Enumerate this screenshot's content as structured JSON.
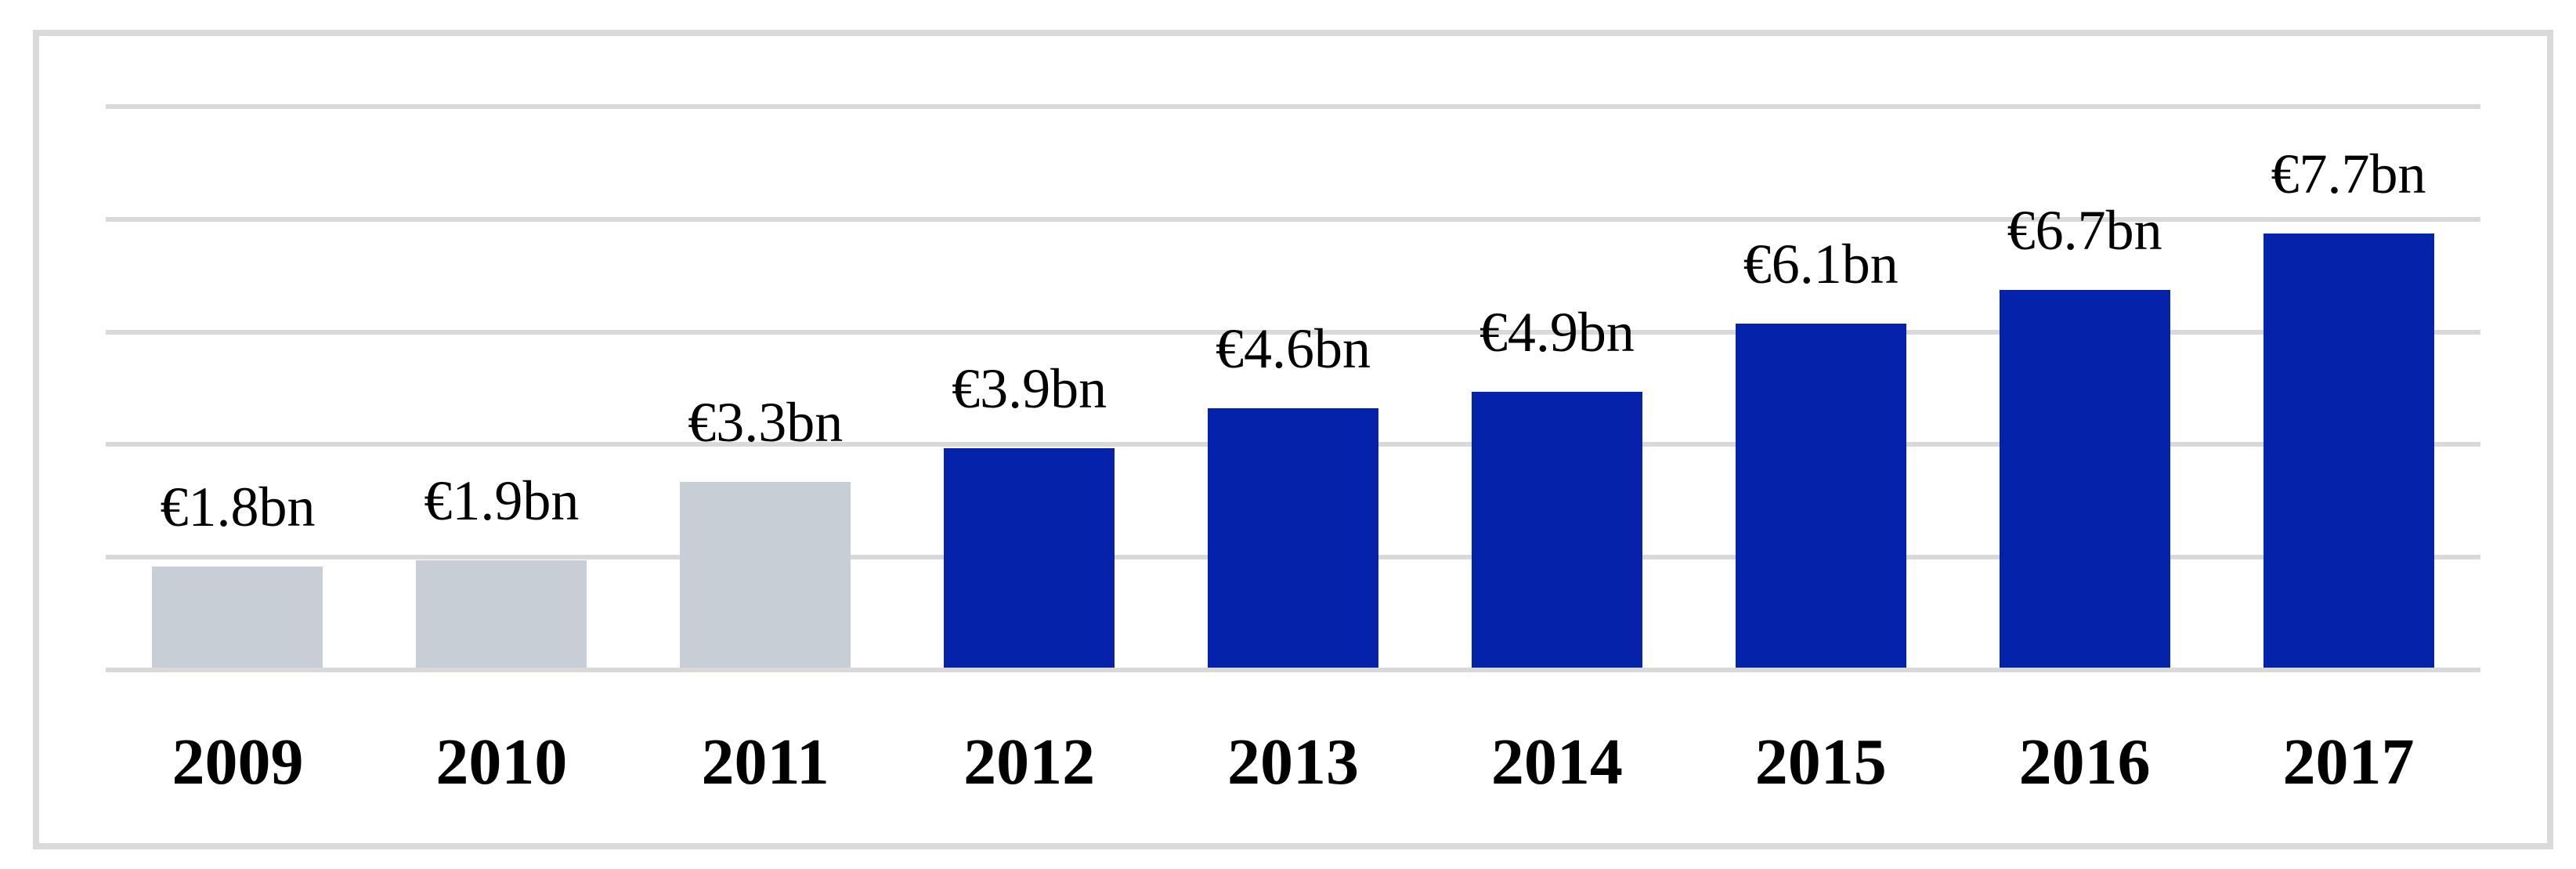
{
  "chart_data": {
    "type": "bar",
    "title": "",
    "xlabel": "",
    "ylabel": "",
    "unit": "€bn",
    "categories": [
      "2009",
      "2010",
      "2011",
      "2012",
      "2013",
      "2014",
      "2015",
      "2016",
      "2017"
    ],
    "values": [
      1.8,
      1.9,
      3.3,
      3.9,
      4.6,
      4.9,
      6.1,
      6.7,
      7.7
    ],
    "value_labels": [
      "€1.8bn",
      "€1.9bn",
      "€3.3bn",
      "€3.9bn",
      "€4.6bn",
      "€4.9bn",
      "€6.1bn",
      "€6.7bn",
      "€7.7bn"
    ],
    "ylim": [
      0,
      10
    ],
    "y_gridlines": [
      0,
      2,
      4,
      6,
      8,
      10
    ],
    "grid": "horizontal",
    "legend": "none",
    "y_axis_labels_visible": false,
    "bar_color_groups": [
      {
        "indices": [
          0,
          1,
          2
        ],
        "color": "#c7ced5",
        "meaning": "earlier-years-gray"
      },
      {
        "indices": [
          3,
          4,
          5,
          6,
          7,
          8
        ],
        "color": "#0523aa",
        "meaning": "later-years-blue"
      }
    ]
  },
  "colors": {
    "background": "#ffffff",
    "frame_border": "#dadada",
    "gridline": "#d9d9d9",
    "label_text": "#000000"
  }
}
